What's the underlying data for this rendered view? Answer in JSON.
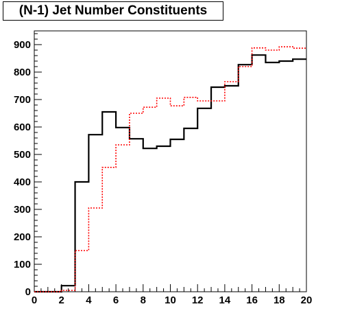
{
  "chart_data": {
    "type": "line",
    "title": "(N-1) Jet Number Constituents",
    "xlabel": "",
    "ylabel": "",
    "xlim": [
      0,
      20
    ],
    "ylim": [
      0,
      950
    ],
    "x_ticks": [
      "0",
      "2",
      "4",
      "6",
      "8",
      "10",
      "12",
      "14",
      "16",
      "18",
      "20"
    ],
    "y_ticks": [
      "0",
      "100",
      "200",
      "300",
      "400",
      "500",
      "600",
      "700",
      "800",
      "900"
    ],
    "bin_edges": [
      0,
      1,
      2,
      3,
      4,
      5,
      6,
      7,
      8,
      9,
      10,
      11,
      12,
      13,
      14,
      15,
      16,
      17,
      18,
      19,
      20
    ],
    "grid": false,
    "series": [
      {
        "color": "#000000",
        "style": "solid",
        "values": [
          0,
          0,
          22,
          400,
          572,
          655,
          598,
          557,
          522,
          530,
          555,
          595,
          668,
          745,
          750,
          827,
          862,
          835,
          840,
          847
        ]
      },
      {
        "color": "#ff0000",
        "style": "dotted",
        "values": [
          0,
          0,
          5,
          150,
          305,
          453,
          535,
          650,
          672,
          705,
          677,
          708,
          695,
          695,
          765,
          820,
          888,
          880,
          892,
          887
        ]
      }
    ]
  }
}
